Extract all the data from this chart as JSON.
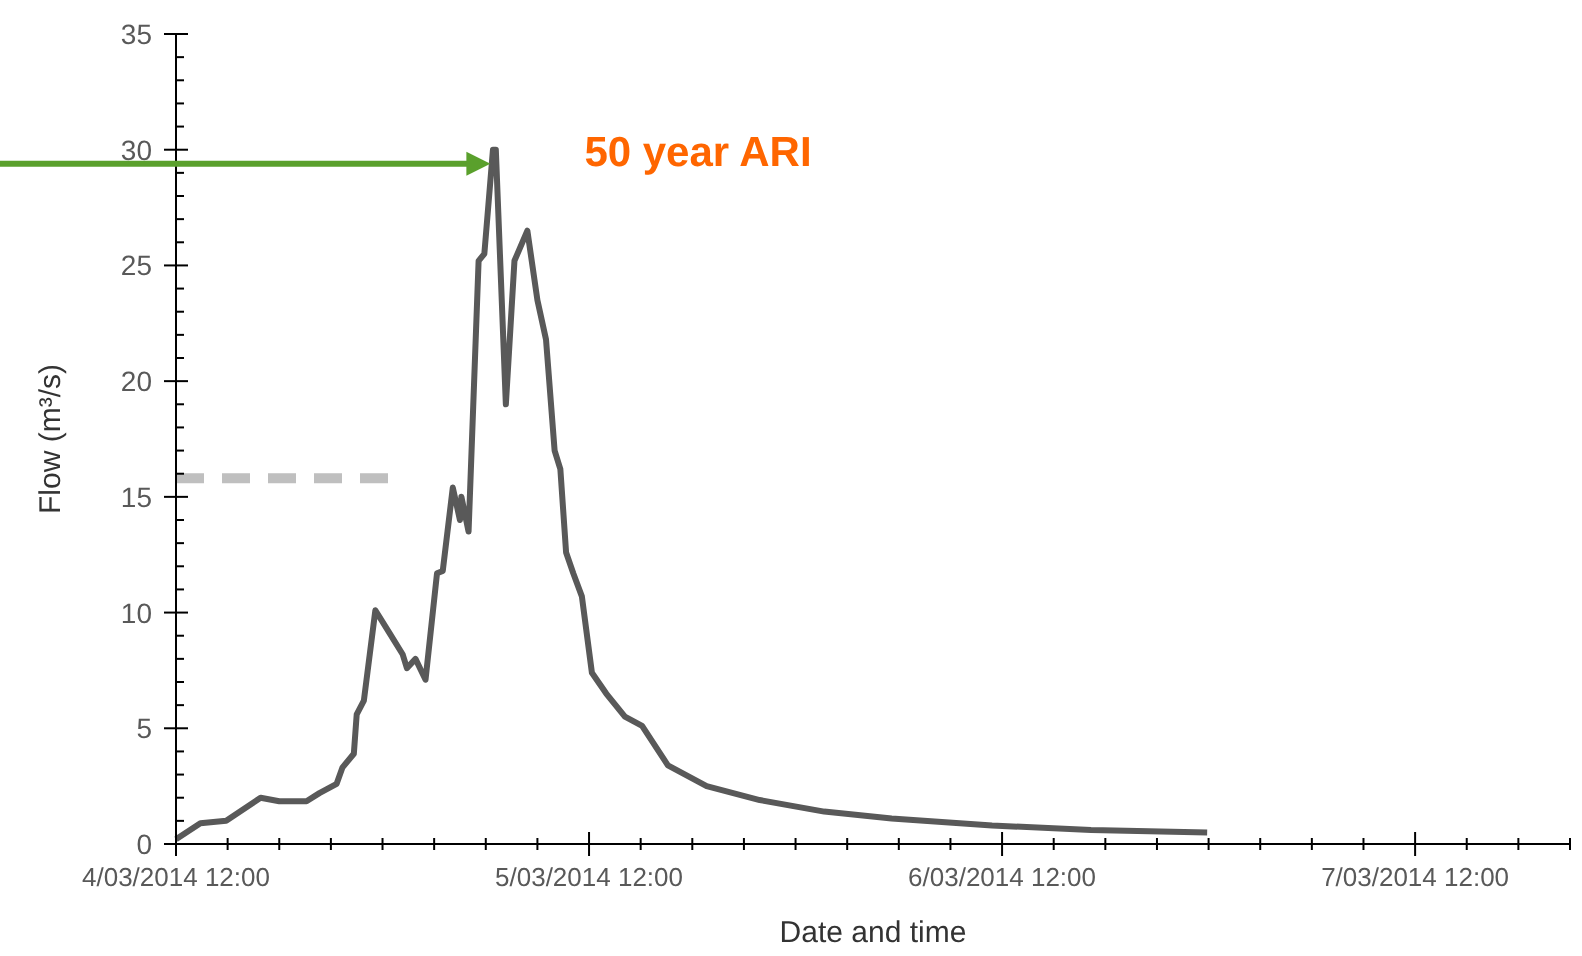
{
  "chart_data": {
    "type": "line",
    "xlabel": "Date and time",
    "ylabel": "Flow (m³/s)",
    "xlim": [
      "2014-03-04T12:00",
      "2014-03-07T21:00"
    ],
    "ylim": [
      0,
      35
    ],
    "xticks": [
      {
        "value": "2014-03-04T12:00",
        "label": "4/03/2014 12:00"
      },
      {
        "value": "2014-03-04T15:00",
        "label": null
      },
      {
        "value": "2014-03-04T18:00",
        "label": null
      },
      {
        "value": "2014-03-04T21:00",
        "label": null
      },
      {
        "value": "2014-03-05T00:00",
        "label": null
      },
      {
        "value": "2014-03-05T03:00",
        "label": null
      },
      {
        "value": "2014-03-05T06:00",
        "label": null
      },
      {
        "value": "2014-03-05T09:00",
        "label": null
      },
      {
        "value": "2014-03-05T12:00",
        "label": "5/03/2014 12:00"
      },
      {
        "value": "2014-03-05T15:00",
        "label": null
      },
      {
        "value": "2014-03-05T18:00",
        "label": null
      },
      {
        "value": "2014-03-05T21:00",
        "label": null
      },
      {
        "value": "2014-03-06T00:00",
        "label": null
      },
      {
        "value": "2014-03-06T03:00",
        "label": null
      },
      {
        "value": "2014-03-06T06:00",
        "label": null
      },
      {
        "value": "2014-03-06T09:00",
        "label": null
      },
      {
        "value": "2014-03-06T12:00",
        "label": "6/03/2014 12:00"
      },
      {
        "value": "2014-03-06T15:00",
        "label": null
      },
      {
        "value": "2014-03-06T18:00",
        "label": null
      },
      {
        "value": "2014-03-06T21:00",
        "label": null
      },
      {
        "value": "2014-03-07T00:00",
        "label": null
      },
      {
        "value": "2014-03-07T03:00",
        "label": null
      },
      {
        "value": "2014-03-07T06:00",
        "label": null
      },
      {
        "value": "2014-03-07T09:00",
        "label": null
      },
      {
        "value": "2014-03-07T12:00",
        "label": "7/03/2014 12:00"
      },
      {
        "value": "2014-03-07T15:00",
        "label": null
      },
      {
        "value": "2014-03-07T18:00",
        "label": null
      },
      {
        "value": "2014-03-07T21:00",
        "label": null
      }
    ],
    "yticks": [
      0,
      {
        "value": 1,
        "label": null
      },
      {
        "value": 2,
        "label": null
      },
      {
        "value": 3,
        "label": null
      },
      {
        "value": 4,
        "label": null
      },
      5,
      {
        "value": 6,
        "label": null
      },
      {
        "value": 7,
        "label": null
      },
      {
        "value": 8,
        "label": null
      },
      {
        "value": 9,
        "label": null
      },
      10,
      {
        "value": 11,
        "label": null
      },
      {
        "value": 12,
        "label": null
      },
      {
        "value": 13,
        "label": null
      },
      {
        "value": 14,
        "label": null
      },
      15,
      {
        "value": 16,
        "label": null
      },
      {
        "value": 17,
        "label": null
      },
      {
        "value": 18,
        "label": null
      },
      {
        "value": 19,
        "label": null
      },
      20,
      {
        "value": 21,
        "label": null
      },
      {
        "value": 22,
        "label": null
      },
      {
        "value": 23,
        "label": null
      },
      {
        "value": 24,
        "label": null
      },
      25,
      {
        "value": 26,
        "label": null
      },
      {
        "value": 27,
        "label": null
      },
      {
        "value": 28,
        "label": null
      },
      {
        "value": 29,
        "label": null
      },
      30,
      {
        "value": 31,
        "label": null
      },
      {
        "value": 32,
        "label": null
      },
      {
        "value": 33,
        "label": null
      },
      {
        "value": 34,
        "label": null
      },
      35
    ],
    "annotations": [
      {
        "text": "50 year ARI",
        "x": "2014-03-05T06:30",
        "y": 30
      }
    ],
    "series": [
      {
        "color": "#595959",
        "line_style": "solid",
        "x": [
          "2014-03-04T12:00",
          "2014-03-04T13:25",
          "2014-03-04T14:55",
          "2014-03-04T16:55",
          "2014-03-04T18:00",
          "2014-03-04T19:35",
          "2014-03-04T20:20",
          "2014-03-04T21:20",
          "2014-03-04T21:40",
          "2014-03-04T22:20",
          "2014-03-04T22:30",
          "2014-03-04T22:55",
          "2014-03-04T23:35",
          "2014-03-05T00:25",
          "2014-03-05T01:10",
          "2014-03-05T01:25",
          "2014-03-05T01:55",
          "2014-03-05T02:30",
          "2014-03-05T03:10",
          "2014-03-05T03:30",
          "2014-03-05T04:05",
          "2014-03-05T04:30",
          "2014-03-05T04:35",
          "2014-03-05T05:00",
          "2014-03-05T05:35",
          "2014-03-05T05:55",
          "2014-03-05T06:25",
          "2014-03-05T06:35",
          "2014-03-05T07:10",
          "2014-03-05T07:40",
          "2014-03-05T08:25",
          "2014-03-05T09:00",
          "2014-03-05T09:30",
          "2014-03-05T10:00",
          "2014-03-05T10:20",
          "2014-03-05T10:40",
          "2014-03-05T11:05",
          "2014-03-05T11:35",
          "2014-03-05T12:10",
          "2014-03-05T13:00",
          "2014-03-05T14:05",
          "2014-03-05T15:05",
          "2014-03-05T16:35",
          "2014-03-05T18:50",
          "2014-03-05T21:55",
          "2014-03-06T01:40",
          "2014-03-06T05:35",
          "2014-03-06T11:25",
          "2014-03-06T17:10",
          "2014-03-06T23:55"
        ],
        "values": [
          0.2,
          0.9,
          1.0,
          2.0,
          1.85,
          1.85,
          2.2,
          2.6,
          3.3,
          3.9,
          5.6,
          6.2,
          10.1,
          9.1,
          8.2,
          7.6,
          8.0,
          7.1,
          11.7,
          11.8,
          15.4,
          14.0,
          15.0,
          13.5,
          25.2,
          25.5,
          30.0,
          30.0,
          19.0,
          25.2,
          26.5,
          23.5,
          21.8,
          17.0,
          16.2,
          12.6,
          11.7,
          10.7,
          7.4,
          6.5,
          5.5,
          5.1,
          3.4,
          2.5,
          1.9,
          1.4,
          1.1,
          0.8,
          0.6,
          0.5
        ]
      },
      {
        "color": "#bfbfbf",
        "line_style": "dashed",
        "x": [
          "2014-03-04T12:00",
          "2014-03-05T00:25"
        ],
        "values": [
          15.8,
          15.8
        ]
      }
    ]
  }
}
